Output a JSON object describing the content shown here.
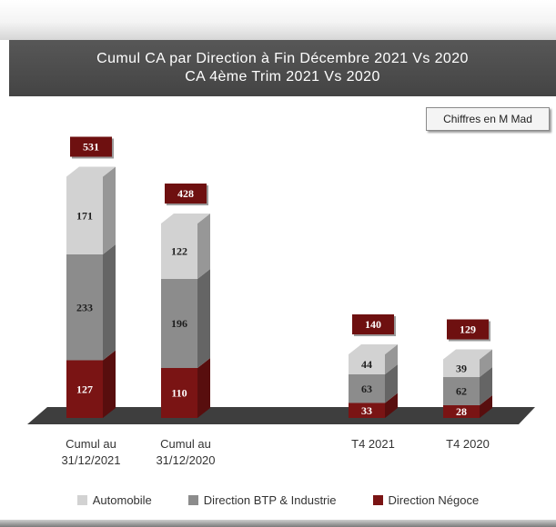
{
  "header": {
    "title_line1": "Cumul CA par Direction à Fin Décembre 2021 Vs 2020",
    "title_line2": "CA 4ème Trim 2021 Vs 2020"
  },
  "unit_label": "Chiffres en M Mad",
  "colors": {
    "automobile": "#d2d2d2",
    "btp": "#8c8c8c",
    "negoce": "#7a1414",
    "floor": "#3e3e3e"
  },
  "chart_data": {
    "type": "bar",
    "stacked": true,
    "three_d": true,
    "categories": [
      [
        "Cumul au",
        "31/12/2021"
      ],
      [
        "Cumul au",
        "31/12/2020"
      ],
      [
        "T4 2021"
      ],
      [
        "T4 2020"
      ]
    ],
    "series": [
      {
        "name": "Direction Négoce",
        "color": "#7a1414",
        "values": [
          127,
          110,
          33,
          28
        ]
      },
      {
        "name": "Direction BTP & Industrie",
        "color": "#8c8c8c",
        "values": [
          233,
          196,
          63,
          62
        ]
      },
      {
        "name": "Automobile",
        "color": "#d2d2d2",
        "values": [
          171,
          122,
          44,
          39
        ]
      }
    ],
    "totals": [
      531,
      428,
      140,
      129
    ],
    "legend": [
      "Automobile",
      "Direction BTP & Industrie",
      "Direction Négoce"
    ],
    "legend_position": "bottom"
  }
}
